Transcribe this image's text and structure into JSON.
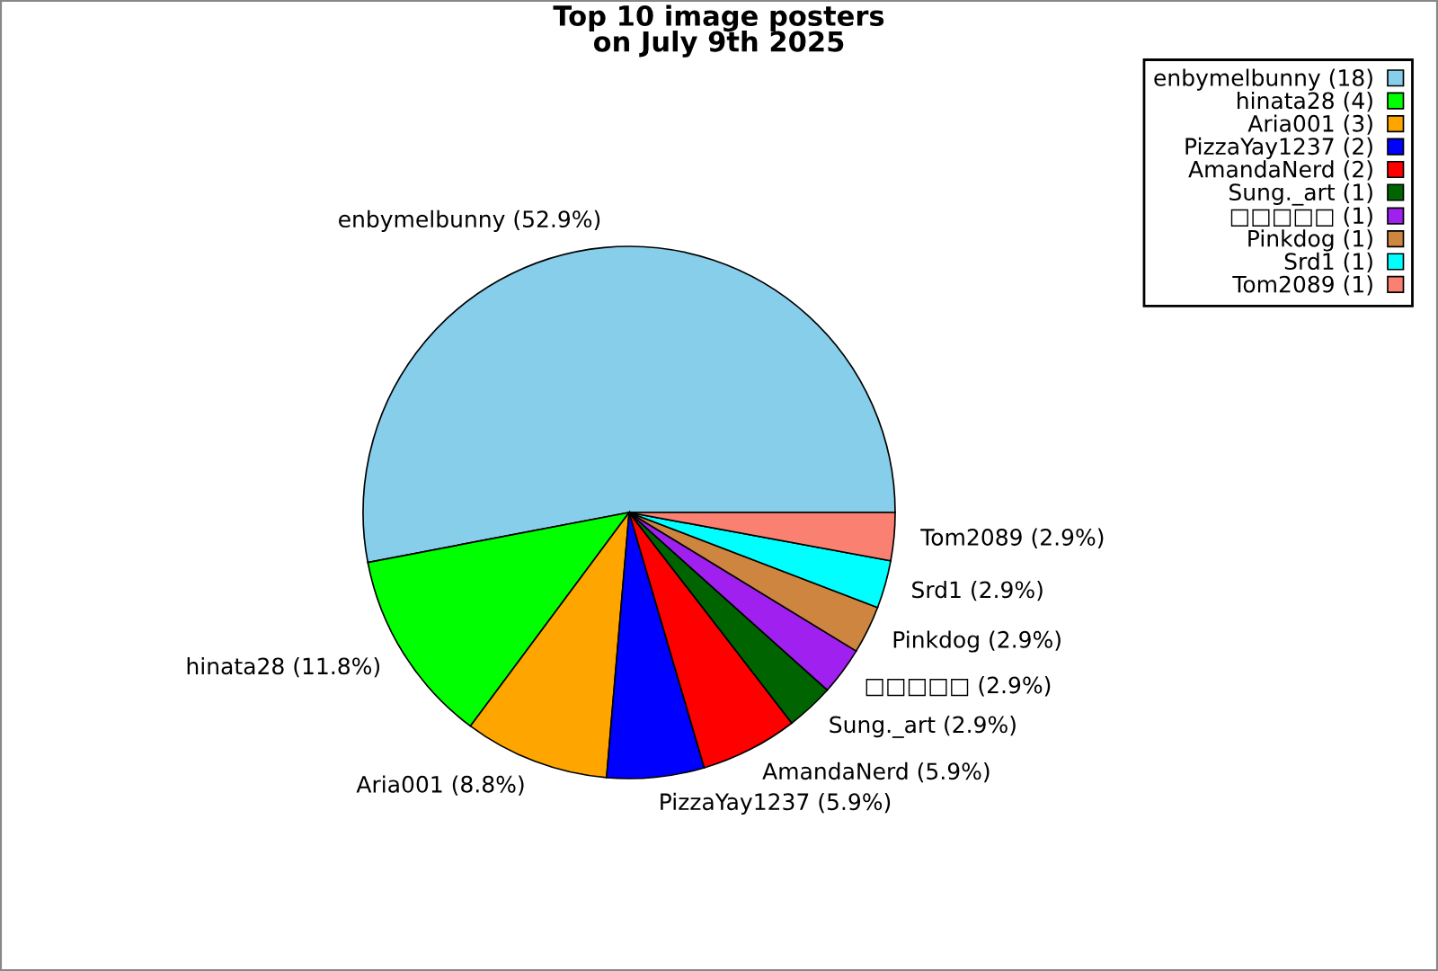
{
  "chart_data": {
    "type": "pie",
    "title": "Top 10 image posters\non July 9th 2025",
    "categories": [
      "enbymelbunny (18)",
      "hinata28 (4)",
      "Aria001 (3)",
      "PizzaYay1237 (2)",
      "AmandaNerd (2)",
      "Sung._art (1)",
      "□□□□□ (1)",
      "Pinkdog (1)",
      "Srd1 (1)",
      "Tom2089 (1)"
    ],
    "values": [
      52.9,
      11.8,
      8.8,
      5.9,
      5.9,
      2.9,
      2.9,
      2.9,
      2.9,
      2.9
    ],
    "value_labels": [
      "enbymelbunny (52.9%)",
      "hinata28 (11.8%)",
      "Aria001 (8.8%)",
      "PizzaYay1237 (5.9%)",
      "AmandaNerd (5.9%)",
      "Sung._art (2.9%)",
      "□□□□□ (2.9%)",
      "Pinkdog (2.9%)",
      "Srd1 (2.9%)",
      "Tom2089 (2.9%)"
    ],
    "colors": [
      "#87ceeb",
      "#00ff00",
      "#ffa500",
      "#0000ff",
      "#ff0000",
      "#006400",
      "#a020f0",
      "#cd853f",
      "#00ffff",
      "#fa8072"
    ],
    "legend": "top right"
  }
}
